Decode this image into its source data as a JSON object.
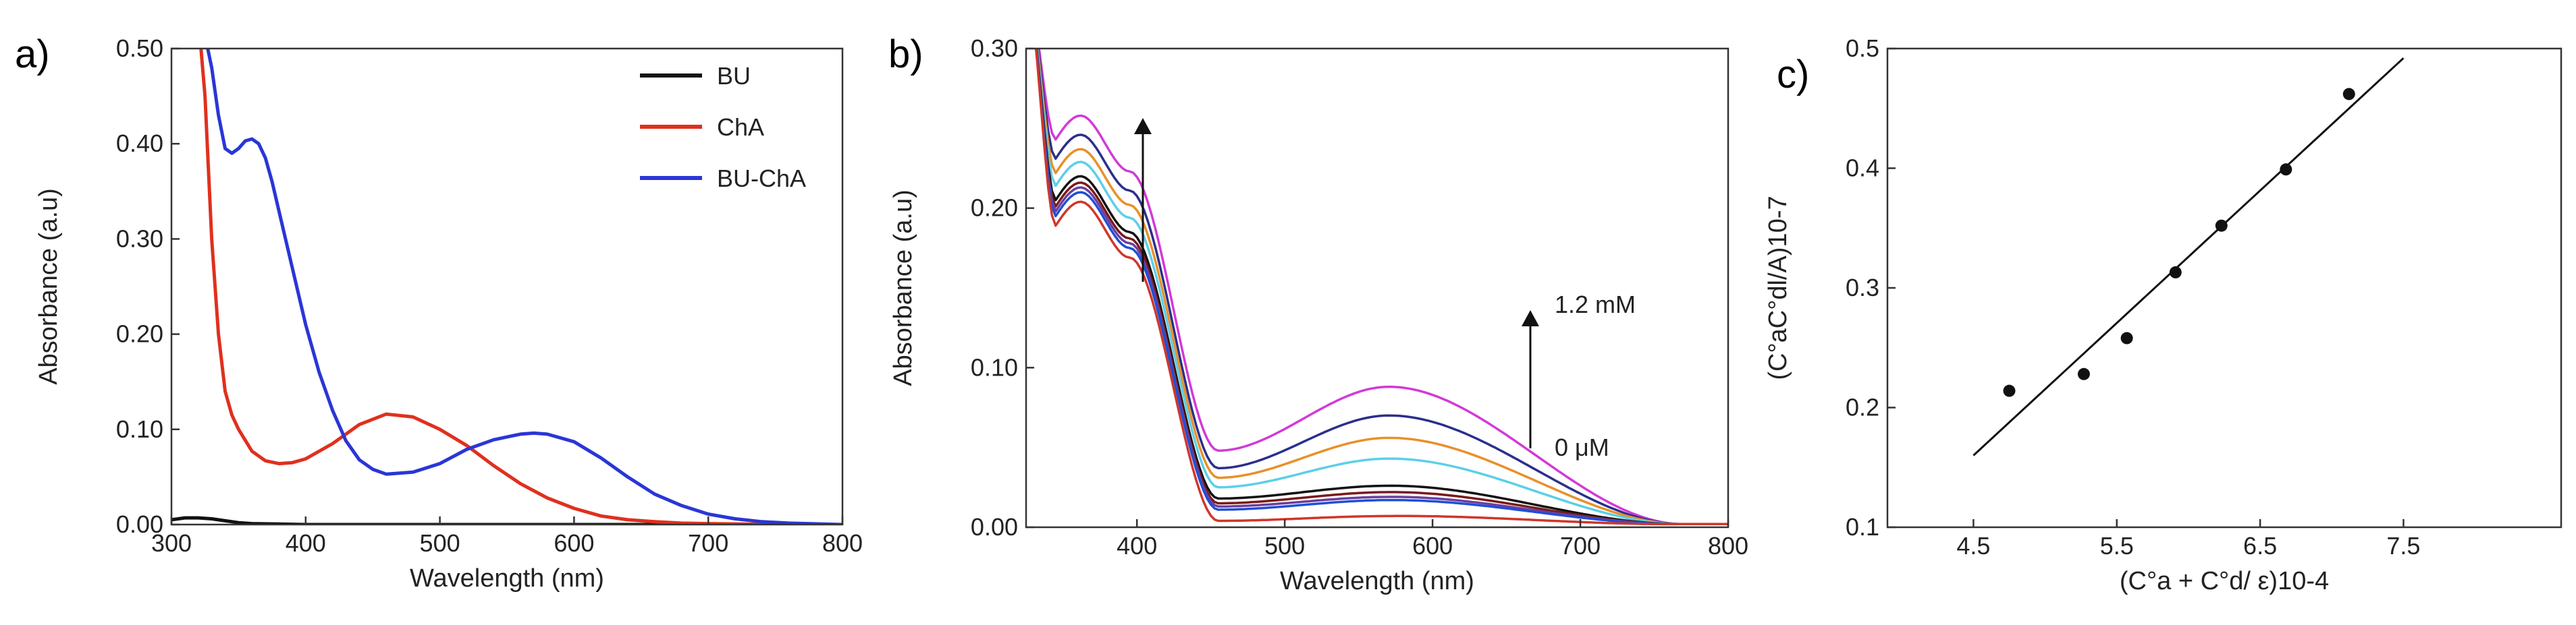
{
  "colors": {
    "black": "#111111",
    "red": "#e0301e",
    "blue": "#2a36d6",
    "magenta": "#d23ad6",
    "navy": "#2b2f8c",
    "orange": "#e8902a",
    "cyan": "#5ccfe8",
    "darkred": "#7a1a1a",
    "purple": "#6b3fa0",
    "royal": "#1f4fd6",
    "crimson": "#d0362a"
  },
  "chart_data": [
    {
      "panel_label": "a)",
      "type": "line",
      "xlabel": "Wavelength (nm)",
      "ylabel": "Absorbance (a.u)",
      "xlim": [
        300,
        800
      ],
      "ylim": [
        0,
        0.5
      ],
      "xticks": [
        300,
        400,
        500,
        600,
        700,
        800
      ],
      "yticks": [
        0,
        0.1,
        0.2,
        0.3,
        0.4,
        0.5
      ],
      "ytick_labels": [
        "0.00",
        "0.10",
        "0.20",
        "0.30",
        "0.40",
        "0.50"
      ],
      "legend_position": "top-right",
      "series": [
        {
          "name": "BU",
          "color": "#111111",
          "x": [
            300,
            310,
            320,
            330,
            340,
            350,
            360,
            380,
            400,
            500,
            600,
            700,
            800
          ],
          "y": [
            0.005,
            0.007,
            0.007,
            0.006,
            0.004,
            0.002,
            0.001,
            0.0005,
            0,
            0,
            0,
            0,
            0
          ]
        },
        {
          "name": "ChA",
          "color": "#e0301e",
          "x": [
            322,
            325,
            330,
            335,
            340,
            345,
            350,
            360,
            370,
            380,
            390,
            400,
            420,
            440,
            460,
            480,
            500,
            520,
            540,
            560,
            580,
            600,
            620,
            640,
            660,
            680,
            700,
            750,
            800
          ],
          "y": [
            0.5,
            0.45,
            0.3,
            0.2,
            0.14,
            0.115,
            0.1,
            0.077,
            0.067,
            0.064,
            0.065,
            0.069,
            0.085,
            0.105,
            0.116,
            0.113,
            0.1,
            0.083,
            0.062,
            0.043,
            0.028,
            0.017,
            0.009,
            0.005,
            0.003,
            0.0015,
            0.001,
            0,
            0
          ]
        },
        {
          "name": "BU-ChA",
          "color": "#2a36d6",
          "x": [
            327,
            330,
            335,
            340,
            345,
            350,
            355,
            360,
            365,
            370,
            375,
            380,
            390,
            400,
            410,
            420,
            430,
            440,
            450,
            460,
            480,
            500,
            520,
            540,
            560,
            570,
            580,
            600,
            620,
            640,
            660,
            680,
            700,
            720,
            740,
            760,
            800
          ],
          "y": [
            0.5,
            0.48,
            0.43,
            0.395,
            0.39,
            0.395,
            0.403,
            0.405,
            0.4,
            0.385,
            0.36,
            0.33,
            0.27,
            0.21,
            0.16,
            0.12,
            0.088,
            0.068,
            0.058,
            0.053,
            0.055,
            0.064,
            0.079,
            0.089,
            0.095,
            0.096,
            0.095,
            0.087,
            0.07,
            0.05,
            0.032,
            0.02,
            0.011,
            0.006,
            0.003,
            0.0015,
            0
          ]
        }
      ]
    },
    {
      "panel_label": "b)",
      "type": "line",
      "xlabel": "Wavelength (nm)",
      "ylabel": "Absorbance (a.u)",
      "xlim": [
        325,
        800
      ],
      "ylim": [
        0,
        0.3
      ],
      "xticks": [
        400,
        500,
        600,
        700,
        800
      ],
      "yticks": [
        0,
        0.1,
        0.2,
        0.3
      ],
      "ytick_labels": [
        "0.00",
        "0.10",
        "0.20",
        "0.30"
      ],
      "annotations": {
        "top": "1.2 mM",
        "bottom": "0 μM"
      },
      "series": [
        {
          "color": "#d23ad6",
          "plateau": 0.258,
          "peak": 0.088,
          "min": 0.048
        },
        {
          "color": "#2b2f8c",
          "plateau": 0.246,
          "peak": 0.07,
          "min": 0.037
        },
        {
          "color": "#e8902a",
          "plateau": 0.237,
          "peak": 0.056,
          "min": 0.031
        },
        {
          "color": "#5ccfe8",
          "plateau": 0.229,
          "peak": 0.043,
          "min": 0.025
        },
        {
          "color": "#111111",
          "plateau": 0.22,
          "peak": 0.026,
          "min": 0.018
        },
        {
          "color": "#7a1a1a",
          "plateau": 0.216,
          "peak": 0.022,
          "min": 0.015
        },
        {
          "color": "#6b3fa0",
          "plateau": 0.213,
          "peak": 0.019,
          "min": 0.013
        },
        {
          "color": "#1f4fd6",
          "plateau": 0.21,
          "peak": 0.017,
          "min": 0.011
        },
        {
          "color": "#d0362a",
          "plateau": 0.204,
          "peak": 0.007,
          "min": 0.004
        }
      ]
    },
    {
      "panel_label": "c)",
      "type": "scatter",
      "xlabel": "(C°a + C°d/ ε)10-4",
      "ylabel": "(C°aC°dl/A)10-7",
      "xlim": [
        3.9,
        8.6
      ],
      "ylim": [
        0.1,
        0.5
      ],
      "xticks": [
        4.5,
        5.5,
        6.5,
        7.5
      ],
      "yticks": [
        0.1,
        0.2,
        0.3,
        0.4,
        0.5
      ],
      "points": [
        {
          "x": 4.75,
          "y": 0.214
        },
        {
          "x": 5.27,
          "y": 0.228
        },
        {
          "x": 5.57,
          "y": 0.258
        },
        {
          "x": 5.91,
          "y": 0.313
        },
        {
          "x": 6.23,
          "y": 0.352
        },
        {
          "x": 6.68,
          "y": 0.399
        },
        {
          "x": 7.12,
          "y": 0.462
        }
      ],
      "fit_line": {
        "x": [
          4.5,
          7.5
        ],
        "y": [
          0.16,
          0.492
        ]
      }
    }
  ]
}
